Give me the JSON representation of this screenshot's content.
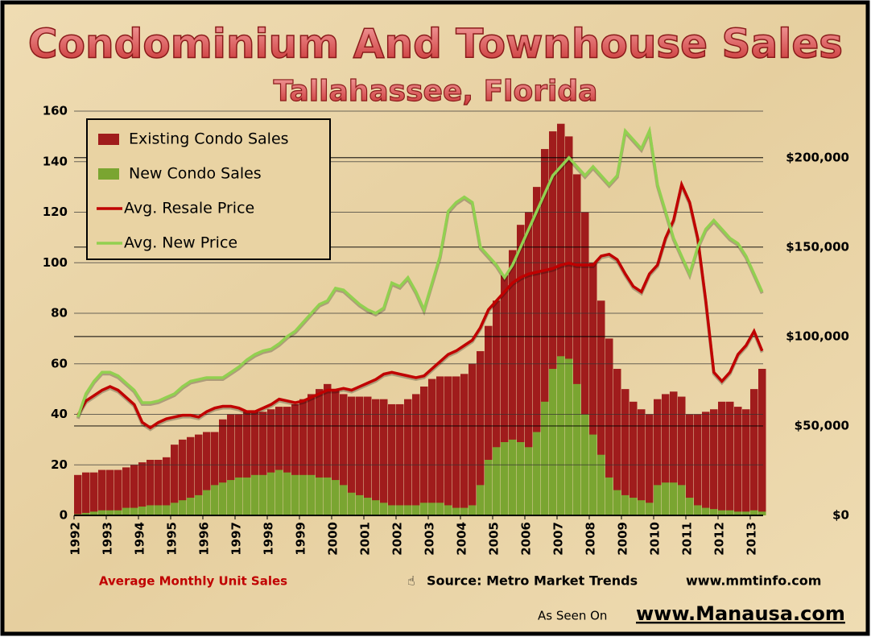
{
  "chart_data": {
    "type": "bar",
    "title": "Condominium And Townhouse Sales",
    "subtitle": "Tallahassee, Florida",
    "x_axis_note": "Average Monthly Unit Sales",
    "source": "Source: Metro Market Trends",
    "source_url": "www.mmtinfo.com",
    "seen_on": "As Seen On",
    "seen_on_url": "www.Manausa.com",
    "x": [
      1992,
      1992.25,
      1992.5,
      1992.75,
      1993,
      1993.25,
      1993.5,
      1993.75,
      1994,
      1994.25,
      1994.5,
      1994.75,
      1995,
      1995.25,
      1995.5,
      1995.75,
      1996,
      1996.25,
      1996.5,
      1996.75,
      1997,
      1997.25,
      1997.5,
      1997.75,
      1998,
      1998.25,
      1998.5,
      1998.75,
      1999,
      1999.25,
      1999.5,
      1999.75,
      2000,
      2000.25,
      2000.5,
      2000.75,
      2001,
      2001.25,
      2001.5,
      2001.75,
      2002,
      2002.25,
      2002.5,
      2002.75,
      2003,
      2003.25,
      2003.5,
      2003.75,
      2004,
      2004.25,
      2004.5,
      2004.75,
      2005,
      2005.25,
      2005.5,
      2005.75,
      2006,
      2006.25,
      2006.5,
      2006.75,
      2007,
      2007.25,
      2007.5,
      2007.75,
      2008,
      2008.25,
      2008.5,
      2008.75,
      2009,
      2009.25,
      2009.5,
      2009.75,
      2010,
      2010.25,
      2010.5,
      2010.75,
      2011,
      2011.25,
      2011.5,
      2011.75,
      2012,
      2012.25,
      2012.5,
      2012.75,
      2013,
      2013.25
    ],
    "xlim": [
      1992,
      2013.4
    ],
    "xticks": [
      1992,
      1993,
      1994,
      1995,
      1996,
      1997,
      1998,
      1999,
      2000,
      2001,
      2002,
      2003,
      2004,
      2005,
      2006,
      2007,
      2008,
      2009,
      2010,
      2011,
      2012,
      2013
    ],
    "ylim": [
      0,
      160
    ],
    "yticks": [
      0,
      20,
      40,
      60,
      80,
      100,
      120,
      140,
      160
    ],
    "y2lim": [
      0,
      226000
    ],
    "y2ticks": [
      {
        "value": 0,
        "label": "$0"
      },
      {
        "value": 50000,
        "label": "$50,000"
      },
      {
        "value": 100000,
        "label": "$100,000"
      },
      {
        "value": 150000,
        "label": "$150,000"
      },
      {
        "value": 200000,
        "label": "$200,000"
      }
    ],
    "grid": true,
    "legend": "upper left",
    "series": [
      {
        "name": "Existing Condo Sales",
        "type": "bar",
        "color": "#a01c1c",
        "values": [
          16,
          17,
          17,
          18,
          18,
          18,
          19,
          20,
          21,
          22,
          22,
          23,
          28,
          30,
          31,
          32,
          33,
          33,
          38,
          40,
          40,
          41,
          41,
          41,
          42,
          43,
          43,
          44,
          46,
          48,
          50,
          52,
          50,
          48,
          47,
          47,
          47,
          46,
          46,
          44,
          44,
          46,
          48,
          51,
          54,
          55,
          55,
          55,
          56,
          60,
          65,
          75,
          85,
          95,
          105,
          115,
          120,
          130,
          145,
          152,
          155,
          150,
          135,
          120,
          100,
          85,
          70,
          58,
          50,
          45,
          42,
          40,
          46,
          48,
          49,
          47,
          40,
          40,
          41,
          42,
          45,
          45,
          43,
          42,
          50,
          58
        ]
      },
      {
        "name": "New Condo Sales",
        "type": "bar",
        "color": "#7aa531",
        "values": [
          0.5,
          1,
          1.5,
          2,
          2,
          2,
          3,
          3,
          3.5,
          4,
          4,
          4,
          5,
          6,
          7,
          8,
          10,
          12,
          13,
          14,
          15,
          15,
          16,
          16,
          17,
          18,
          17,
          16,
          16,
          16,
          15,
          15,
          14,
          12,
          9,
          8,
          7,
          6,
          5,
          4,
          4,
          4,
          4,
          5,
          5,
          5,
          4,
          3,
          3,
          4,
          12,
          22,
          27,
          29,
          30,
          29,
          27,
          33,
          45,
          58,
          63,
          62,
          52,
          40,
          32,
          24,
          15,
          10,
          8,
          7,
          6,
          5,
          12,
          13,
          13,
          12,
          7,
          4,
          3,
          2.5,
          2,
          2,
          1.5,
          1.5,
          2,
          1.5
        ]
      },
      {
        "name": "Avg. Resale Price",
        "type": "line",
        "axis": "y2",
        "color": "#c00000",
        "values": [
          56000,
          64000,
          67000,
          70000,
          72000,
          70000,
          66000,
          62000,
          52000,
          49000,
          52000,
          54000,
          55000,
          56000,
          56000,
          55000,
          58000,
          60000,
          61000,
          61000,
          60000,
          58000,
          58000,
          60000,
          62000,
          65000,
          64000,
          63000,
          64000,
          66000,
          68000,
          70000,
          70000,
          71000,
          70000,
          72000,
          74000,
          76000,
          79000,
          80000,
          79000,
          78000,
          77000,
          78000,
          82000,
          86000,
          90000,
          92000,
          95000,
          98000,
          105000,
          115000,
          120000,
          125000,
          130000,
          133000,
          135000,
          136000,
          137000,
          138000,
          140000,
          141000,
          140000,
          140000,
          140000,
          145000,
          146000,
          143000,
          135000,
          128000,
          125000,
          135000,
          140000,
          155000,
          165000,
          185000,
          175000,
          155000,
          120000,
          80000,
          75000,
          80000,
          90000,
          95000,
          103000,
          92000
        ]
      },
      {
        "name": "Avg. New Price",
        "type": "line",
        "axis": "y2",
        "color": "#92d050",
        "values": [
          55000,
          68000,
          75000,
          80000,
          80000,
          78000,
          74000,
          70000,
          63000,
          63000,
          64000,
          66000,
          68000,
          72000,
          75000,
          76000,
          77000,
          77000,
          77000,
          80000,
          83000,
          87000,
          90000,
          92000,
          93000,
          96000,
          100000,
          103000,
          108000,
          113000,
          118000,
          120000,
          127000,
          126000,
          122000,
          118000,
          115000,
          113000,
          116000,
          130000,
          128000,
          133000,
          125000,
          115000,
          130000,
          145000,
          170000,
          175000,
          178000,
          175000,
          150000,
          145000,
          140000,
          133000,
          140000,
          150000,
          160000,
          170000,
          180000,
          190000,
          195000,
          200000,
          195000,
          190000,
          195000,
          190000,
          185000,
          190000,
          215000,
          210000,
          205000,
          215000,
          185000,
          170000,
          155000,
          145000,
          135000,
          150000,
          160000,
          165000,
          160000,
          155000,
          152000,
          145000,
          135000,
          125000
        ]
      }
    ]
  }
}
